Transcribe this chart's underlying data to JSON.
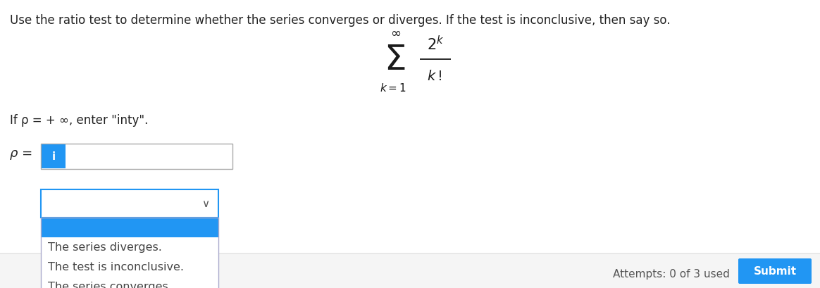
{
  "background_color": "#ffffff",
  "title_text": "Use the ratio test to determine whether the series converges or diverges. If the test is inconclusive, then say so.",
  "title_fontsize": 12.0,
  "title_color": "#222222",
  "if_rho_text": "If ρ = + ∞, enter \"inty\".",
  "if_rho_fontsize": 12.0,
  "rho_label_text": "ρ =",
  "rho_label_fontsize": 13,
  "input_box_edge_color": "#aaaaaa",
  "input_box_fill": "#ffffff",
  "cursor_box_color": "#2196f3",
  "cursor_text": "i",
  "cursor_text_color": "#ffffff",
  "cursor_fontsize": 11,
  "dropdown_box_edge_color": "#2196f3",
  "dropdown_box_fill": "#ffffff",
  "dropdown_selected_color": "#2196f3",
  "dropdown_items": [
    "The series diverges.",
    "The test is inconclusive.",
    "The series converges."
  ],
  "dropdown_items_fontsize": 11.5,
  "dropdown_items_color": "#444444",
  "dropdown_border_color": "#aaaadd",
  "attempts_text": "Attempts: 0 of 3 used",
  "attempts_fontsize": 11,
  "submit_btn_color": "#2196f3",
  "submit_btn_text": "Submit",
  "submit_btn_text_color": "#ffffff",
  "submit_fontsize": 11,
  "gray_bar_color": "#e8e8e8"
}
